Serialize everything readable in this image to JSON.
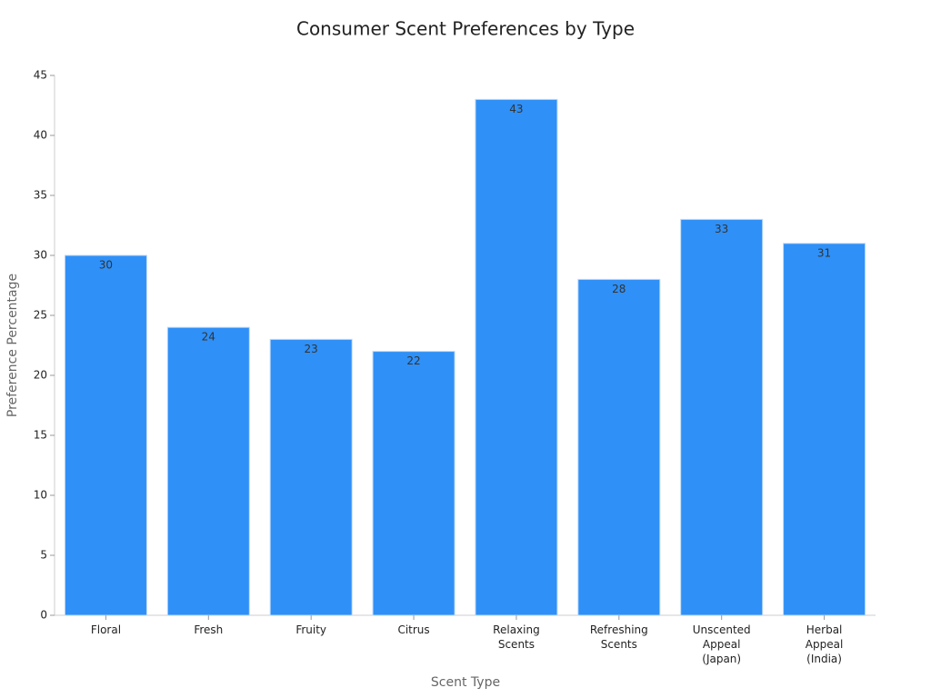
{
  "chart_data": {
    "type": "bar",
    "title": "Consumer Scent Preferences by Type",
    "x_label": "Scent Type",
    "y_label": "Preference Percentage",
    "categories": [
      "Floral",
      "Fresh",
      "Fruity",
      "Citrus",
      "Relaxing Scents",
      "Refreshing Scents",
      "Unscented Appeal (Japan)",
      "Herbal Appeal (India)"
    ],
    "values": [
      30,
      24,
      23,
      22,
      43,
      28,
      33,
      31
    ],
    "color": "#2f90f7",
    "ylim": [
      0,
      45
    ],
    "yticks": [
      0,
      5,
      10,
      15,
      20,
      25,
      30,
      35,
      40,
      45
    ],
    "grid": false
  }
}
